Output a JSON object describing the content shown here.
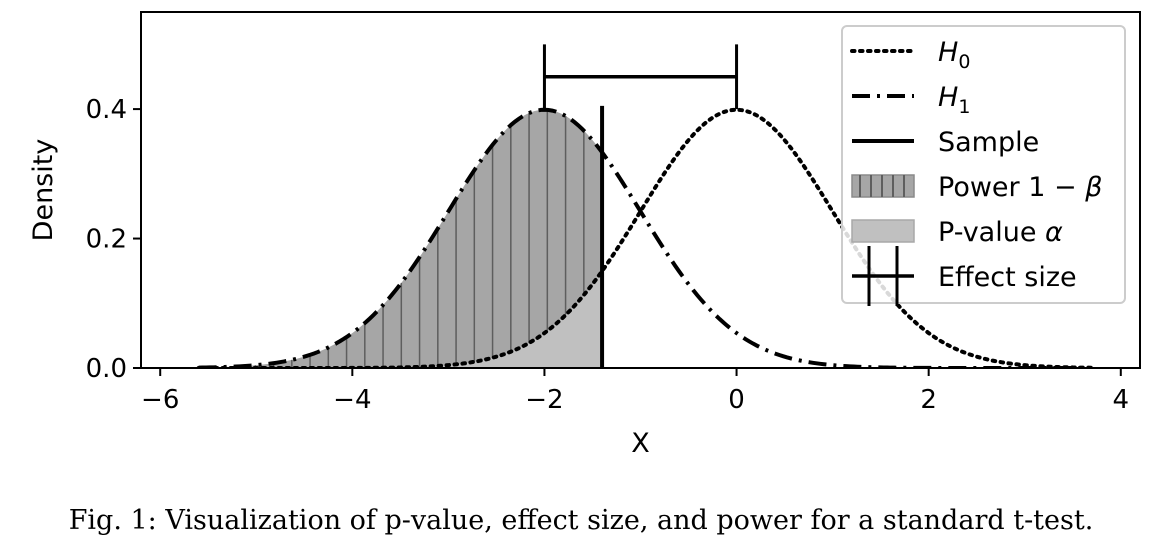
{
  "chart_data": {
    "type": "area",
    "xlabel": "X",
    "ylabel": "Density",
    "xlim": [
      -6.2,
      4.2
    ],
    "ylim": [
      0,
      0.55
    ],
    "xticks": [
      -6,
      -4,
      -2,
      0,
      2,
      4
    ],
    "xtick_labels": [
      "−6",
      "−4",
      "−2",
      "0",
      "2",
      "4"
    ],
    "yticks": [
      0.0,
      0.2,
      0.4
    ],
    "ytick_labels": [
      "0.0",
      "0.2",
      "0.4"
    ],
    "grid": false,
    "legend_position": "top-right",
    "series": [
      {
        "name": "H_0",
        "kind": "normal-pdf",
        "mean": 0,
        "sd": 1,
        "x_range": [
          -5.6,
          3.7
        ],
        "line_style": "dotted"
      },
      {
        "name": "H_1",
        "kind": "normal-pdf",
        "mean": -2,
        "sd": 1,
        "x_range": [
          -5.6,
          3.7
        ],
        "line_style": "dashdot"
      },
      {
        "name": "Sample",
        "kind": "vertical-line",
        "x": -1.4,
        "y_top": 0.405,
        "line_style": "solid"
      },
      {
        "name": "Power 1 − β",
        "kind": "shaded-area-under-H_1",
        "from": -5.6,
        "to": -1.4,
        "hatch": "vertical",
        "color": "#a6a6a6"
      },
      {
        "name": "P-value α",
        "kind": "shaded-area-under-H_0",
        "from": -5.6,
        "to": -1.4,
        "color": "#c0c0c0"
      },
      {
        "name": "Effect size",
        "kind": "interval",
        "from": -2,
        "to": 0,
        "y": 0.45,
        "cap_low": 0.4,
        "cap_high": 0.5
      }
    ],
    "legend": [
      {
        "key": "h0",
        "main": "H",
        "sub": "0",
        "italic": true
      },
      {
        "key": "h1",
        "main": "H",
        "sub": "1",
        "italic": true
      },
      {
        "key": "sample",
        "main": "Sample"
      },
      {
        "key": "power",
        "main": "Power 1 − ",
        "greek": "β"
      },
      {
        "key": "pvalue",
        "main": "P-value ",
        "greek": "α"
      },
      {
        "key": "effect",
        "main": "Effect size"
      }
    ]
  },
  "caption": "Fig. 1: Visualization of p-value, effect size, and power for a standard t-test."
}
